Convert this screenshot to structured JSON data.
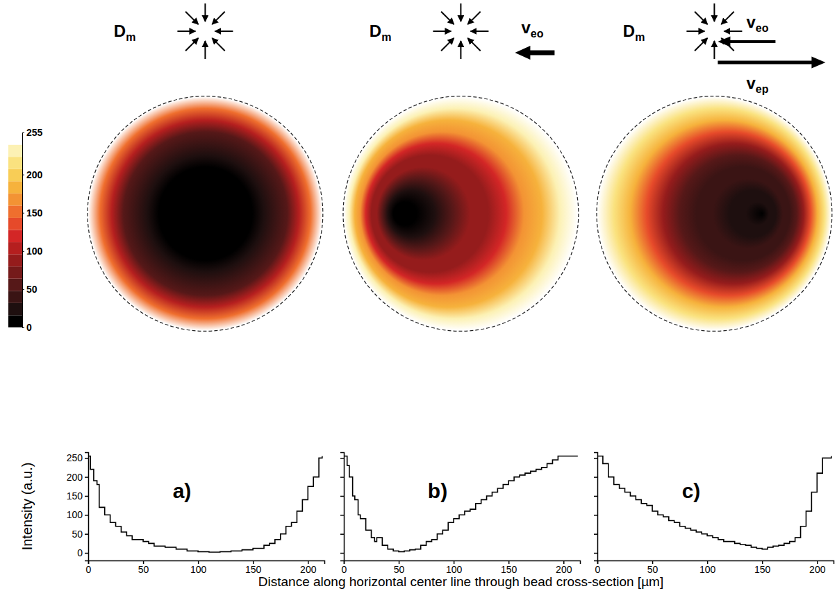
{
  "chart_data": {
    "type": "heatmap_profiles",
    "xlabel": "Distance along horizontal center line through bead cross-section [µm]",
    "ylabel": "Intensity (a.u.)",
    "xlim": [
      0,
      215
    ],
    "xticks": [
      0,
      50,
      100,
      150,
      200
    ],
    "ylim": [
      -20,
      265
    ],
    "yticks": [
      0,
      50,
      100,
      150,
      200,
      250
    ],
    "colorbar": {
      "range": [
        0,
        255
      ],
      "ticks": [
        0,
        50,
        100,
        150,
        200,
        255
      ],
      "colors": [
        "#000000",
        "#1e0f0f",
        "#3a1414",
        "#561818",
        "#751a1a",
        "#951c1c",
        "#b51f1f",
        "#d32626",
        "#e64a2a",
        "#ef6f2e",
        "#f39334",
        "#f6b23c",
        "#f8cd56",
        "#fae27f",
        "#fcf1b4",
        "#ffffff"
      ]
    },
    "panels": [
      {
        "label": "a)",
        "arrows": [
          {
            "symbol": "D",
            "subscript": "m"
          }
        ],
        "image": {
          "center_x": 107,
          "radial_intensity": [
            2,
            3,
            5,
            8,
            13,
            22,
            35,
            60,
            100,
            155,
            255
          ]
        },
        "profile": {
          "x": [
            0,
            2,
            5,
            8,
            10,
            13,
            15,
            20,
            25,
            30,
            35,
            40,
            45,
            50,
            55,
            60,
            70,
            80,
            90,
            100,
            110,
            120,
            130,
            140,
            150,
            160,
            165,
            170,
            175,
            180,
            185,
            190,
            195,
            200,
            205,
            210,
            213
          ],
          "values": [
            255,
            220,
            190,
            180,
            120,
            120,
            100,
            80,
            70,
            55,
            45,
            35,
            35,
            30,
            25,
            18,
            15,
            10,
            5,
            3,
            2,
            3,
            5,
            8,
            12,
            20,
            25,
            35,
            50,
            70,
            80,
            110,
            140,
            175,
            200,
            250,
            255
          ]
        }
      },
      {
        "label": "b)",
        "tick_labels": "x",
        "arrows": [
          {
            "symbol": "D",
            "subscript": "m"
          },
          {
            "symbol": "v",
            "subscript": "eo"
          }
        ],
        "image": {
          "center_x": 50,
          "radial_intensity": [
            3,
            10,
            25,
            60,
            80,
            95,
            125,
            165,
            185,
            225,
            255
          ]
        },
        "profile": {
          "x": [
            0,
            3,
            5,
            8,
            10,
            13,
            15,
            20,
            25,
            28,
            30,
            35,
            40,
            45,
            50,
            55,
            60,
            65,
            70,
            75,
            80,
            85,
            90,
            95,
            100,
            105,
            110,
            115,
            120,
            125,
            130,
            135,
            140,
            145,
            150,
            155,
            160,
            165,
            170,
            175,
            180,
            185,
            190,
            195,
            200,
            213
          ],
          "values": [
            255,
            230,
            200,
            150,
            140,
            100,
            90,
            60,
            40,
            30,
            40,
            20,
            10,
            5,
            3,
            5,
            8,
            10,
            20,
            30,
            35,
            50,
            60,
            80,
            90,
            100,
            110,
            115,
            130,
            140,
            150,
            160,
            170,
            180,
            190,
            200,
            205,
            210,
            215,
            220,
            225,
            235,
            245,
            255,
            255,
            255
          ]
        }
      },
      {
        "label": "c)",
        "tick_labels": "x",
        "arrows": [
          {
            "symbol": "D",
            "subscript": "m"
          },
          {
            "symbol": "v",
            "subscript": "eo"
          },
          {
            "symbol": "v",
            "subscript": "ep"
          }
        ],
        "image": {
          "center_x": 150,
          "radial_intensity": [
            10,
            18,
            25,
            32,
            42,
            58,
            92,
            138,
            180,
            215,
            255
          ]
        },
        "profile": {
          "x": [
            0,
            5,
            10,
            15,
            20,
            25,
            30,
            35,
            40,
            45,
            50,
            55,
            60,
            65,
            70,
            75,
            80,
            85,
            90,
            95,
            100,
            105,
            110,
            115,
            120,
            125,
            130,
            135,
            140,
            145,
            150,
            155,
            160,
            165,
            170,
            175,
            180,
            185,
            190,
            195,
            200,
            205,
            213
          ],
          "values": [
            255,
            235,
            200,
            180,
            170,
            160,
            150,
            140,
            130,
            125,
            110,
            100,
            95,
            85,
            80,
            70,
            65,
            60,
            55,
            50,
            45,
            40,
            35,
            30,
            30,
            25,
            22,
            20,
            15,
            12,
            10,
            15,
            18,
            20,
            25,
            30,
            40,
            70,
            110,
            160,
            210,
            250,
            255
          ]
        }
      }
    ]
  }
}
